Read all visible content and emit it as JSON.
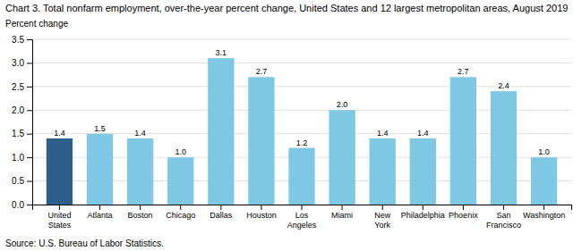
{
  "chart_data": {
    "type": "bar",
    "title": "Chart 3. Total nonfarm employment, over-the-year percent change, United States and 12 largest metropolitan areas, August  2019",
    "ylabel": "Percent change",
    "source": "Source: U.S. Bureau of Labor Statistics.",
    "categories": [
      "United\nStates",
      "Atlanta",
      "Boston",
      "Chicago",
      "Dallas",
      "Houston",
      "Los\nAngeles",
      "Miami",
      "New\nYork",
      "Philadelphia",
      "Phoenix",
      "San\nFrancisco",
      "Washington"
    ],
    "values": [
      1.4,
      1.5,
      1.4,
      1.0,
      3.1,
      2.7,
      1.2,
      2.0,
      1.4,
      1.4,
      2.7,
      2.4,
      1.0
    ],
    "value_labels": [
      "1.4",
      "1.5",
      "1.4",
      "1.0",
      "3.1",
      "2.7",
      "1.2",
      "2.0",
      "1.4",
      "1.4",
      "2.7",
      "2.4",
      "1.0"
    ],
    "colors": [
      "#2e5f8a",
      "#7ec8e3",
      "#7ec8e3",
      "#7ec8e3",
      "#7ec8e3",
      "#7ec8e3",
      "#7ec8e3",
      "#7ec8e3",
      "#7ec8e3",
      "#7ec8e3",
      "#7ec8e3",
      "#7ec8e3",
      "#7ec8e3"
    ],
    "ylim": [
      0,
      3.5
    ],
    "yticks": [
      {
        "value": 0,
        "label": "0.0"
      },
      0.5,
      {
        "value": 1,
        "label": "1.0"
      },
      1.5,
      {
        "value": 2,
        "label": "2.0"
      },
      2.5,
      {
        "value": 3,
        "label": "3.0"
      },
      3.5
    ],
    "data_labels": true,
    "grid": true
  }
}
